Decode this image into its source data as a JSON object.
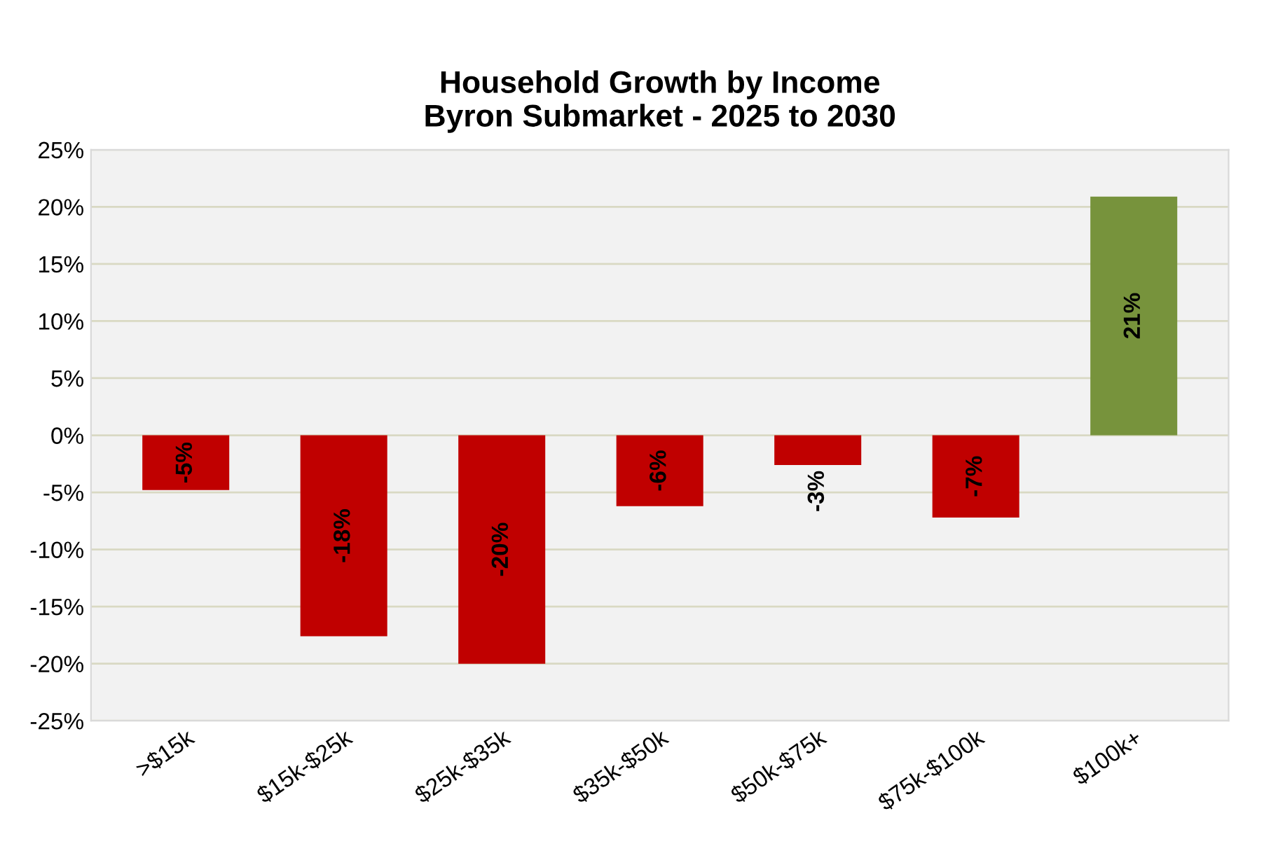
{
  "chart_data": {
    "type": "bar",
    "title": "Household Growth by Income\nByron Submarket - 2025 to 2030",
    "categories": [
      ">$15k",
      "$15k-$25k",
      "$25k-$35k",
      "$35k-$50k",
      "$50k-$75k",
      "$75k-$100k",
      "$100k+"
    ],
    "values": [
      -4.8,
      -17.6,
      -20.0,
      -6.2,
      -2.6,
      -7.2,
      20.9
    ],
    "colors": [
      "#c00000",
      "#c00000",
      "#c00000",
      "#c00000",
      "#c00000",
      "#c00000",
      "#77933c"
    ],
    "value_labels": [
      "-5%",
      "-18%",
      "-20%",
      "-6%",
      "-3%",
      "-7%",
      "21%"
    ],
    "ylim": [
      -25,
      25
    ],
    "yticks": [
      {
        "value": -25,
        "label": "-25%"
      },
      {
        "value": -20,
        "label": "-20%"
      },
      {
        "value": -15,
        "label": "-15%"
      },
      {
        "value": -10,
        "label": "-10%"
      },
      {
        "value": -5,
        "label": "-5%"
      },
      {
        "value": 0,
        "label": "0%"
      },
      {
        "value": 5,
        "label": "5%"
      },
      {
        "value": 10,
        "label": "10%"
      },
      {
        "value": 15,
        "label": "15%"
      },
      {
        "value": 20,
        "label": "20%"
      },
      {
        "value": 25,
        "label": "25%"
      }
    ],
    "grid": "y"
  }
}
